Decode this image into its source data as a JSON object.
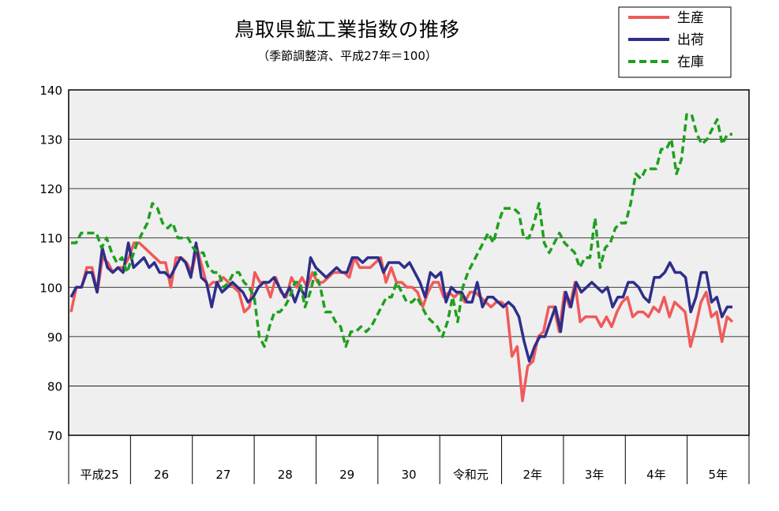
{
  "chart_data": {
    "type": "line",
    "title": "鳥取県鉱工業指数の推移",
    "subtitle": "（季節調整済、平成27年＝100）",
    "ylim": [
      70,
      140
    ],
    "yticks": [
      70,
      80,
      90,
      100,
      110,
      120,
      130,
      140
    ],
    "grid": true,
    "legend_position": "top-right",
    "year_labels": [
      "平成25",
      "26",
      "27",
      "28",
      "29",
      "30",
      "令和元",
      "2年",
      "3年",
      "4年",
      "5年"
    ],
    "series": [
      {
        "name": "生産",
        "color": "#f05a5a",
        "style": "solid",
        "values": [
          95,
          100,
          100,
          104,
          104,
          99,
          106,
          105,
          103,
          104,
          104,
          106,
          109,
          109,
          108,
          107,
          106,
          105,
          105,
          100,
          106,
          106,
          105,
          103,
          108,
          104,
          100,
          101,
          101,
          102,
          101,
          100,
          99,
          95,
          96,
          103,
          101,
          101,
          98,
          102,
          99,
          98,
          102,
          100,
          102,
          100,
          103,
          101,
          101,
          102,
          103,
          103,
          103,
          102,
          106,
          104,
          104,
          104,
          105,
          106,
          101,
          104,
          101,
          101,
          100,
          100,
          99,
          96,
          99,
          101,
          101,
          98,
          99,
          98,
          99,
          97,
          99,
          99,
          98,
          97,
          96,
          97,
          97,
          96,
          86,
          88,
          77,
          84,
          85,
          90,
          91,
          96,
          96,
          91,
          99,
          96,
          101,
          93,
          94,
          94,
          94,
          92,
          94,
          92,
          95,
          97,
          98,
          94,
          95,
          95,
          94,
          96,
          95,
          98,
          94,
          97,
          96,
          95,
          88,
          92,
          97,
          99,
          94,
          95,
          89,
          94,
          93
        ]
      },
      {
        "name": "出荷",
        "color": "#2e2e8a",
        "style": "solid",
        "values": [
          98,
          100,
          100,
          103,
          103,
          99,
          108,
          104,
          103,
          104,
          103,
          109,
          104,
          105,
          106,
          104,
          105,
          103,
          103,
          102,
          104,
          106,
          105,
          102,
          109,
          102,
          101,
          96,
          101,
          99,
          100,
          101,
          100,
          99,
          97,
          98,
          100,
          101,
          101,
          102,
          100,
          98,
          100,
          97,
          100,
          98,
          106,
          104,
          103,
          102,
          103,
          104,
          103,
          103,
          106,
          106,
          105,
          106,
          106,
          106,
          103,
          105,
          105,
          105,
          104,
          105,
          103,
          101,
          98,
          103,
          102,
          103,
          97,
          100,
          99,
          99,
          97,
          97,
          101,
          96,
          98,
          98,
          97,
          96,
          97,
          96,
          94,
          89,
          85,
          88,
          90,
          90,
          93,
          96,
          91,
          99,
          96,
          101,
          99,
          100,
          101,
          100,
          99,
          100,
          96,
          98,
          98,
          101,
          101,
          100,
          98,
          97,
          102,
          102,
          103,
          105,
          103,
          103,
          102,
          95,
          98,
          103,
          103,
          97,
          98,
          94,
          96,
          96
        ]
      },
      {
        "name": "在庫",
        "color": "#1ea01e",
        "style": "dashed",
        "values": [
          109,
          109,
          111,
          111,
          111,
          111,
          108,
          110,
          107,
          105,
          106,
          103,
          106,
          109,
          111,
          113,
          117,
          116,
          113,
          112,
          113,
          110,
          110,
          110,
          108,
          107,
          107,
          104,
          103,
          103,
          100,
          101,
          103,
          103,
          101,
          100,
          98,
          90,
          88,
          92,
          95,
          95,
          96,
          98,
          101,
          101,
          96,
          99,
          103,
          100,
          95,
          95,
          93,
          92,
          88,
          91,
          91,
          92,
          91,
          92,
          94,
          96,
          98,
          98,
          101,
          99,
          97,
          97,
          98,
          96,
          94,
          93,
          92,
          90,
          93,
          98,
          93,
          100,
          103,
          105,
          107,
          109,
          111,
          109,
          113,
          116,
          116,
          116,
          115,
          110,
          110,
          113,
          117,
          109,
          107,
          109,
          111,
          109,
          108,
          107,
          104,
          106,
          106,
          114,
          104,
          108,
          109,
          112,
          113,
          113,
          117,
          123,
          122,
          124,
          124,
          124,
          128,
          128,
          130,
          123,
          126,
          135,
          135,
          131,
          129,
          130,
          132,
          134,
          129,
          131,
          131
        ]
      }
    ]
  }
}
